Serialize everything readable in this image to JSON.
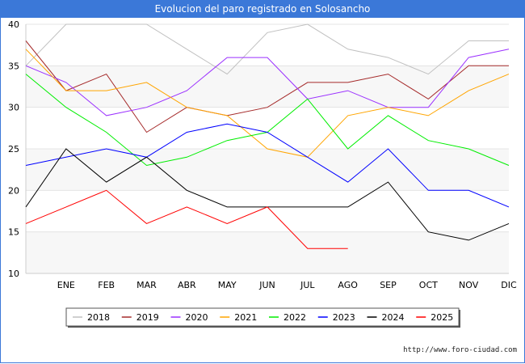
{
  "title": "Evolucion del paro registrado en Solosancho",
  "source_label": "http://www.foro-ciudad.com",
  "chart_data": {
    "type": "line",
    "title": "Evolucion del paro registrado en Solosancho",
    "categories": [
      "",
      "ENE",
      "FEB",
      "MAR",
      "ABR",
      "MAY",
      "JUN",
      "JUL",
      "AGO",
      "SEP",
      "OCT",
      "NOV",
      "DIC"
    ],
    "y_ticks": [
      10,
      15,
      20,
      25,
      30,
      35,
      40
    ],
    "ylim": [
      10,
      40
    ],
    "grid": "horizontal bands",
    "legend_position": "bottom",
    "series": [
      {
        "name": "2018",
        "color": "#c0c0c0",
        "values": [
          35,
          40,
          40,
          40,
          37,
          34,
          39,
          40,
          37,
          36,
          34,
          38,
          38
        ]
      },
      {
        "name": "2019",
        "color": "#a52a2a",
        "values": [
          38,
          32,
          34,
          27,
          30,
          29,
          30,
          33,
          33,
          34,
          31,
          35,
          35
        ]
      },
      {
        "name": "2020",
        "color": "#9b30ff",
        "values": [
          35,
          33,
          29,
          30,
          32,
          36,
          36,
          31,
          32,
          30,
          30,
          36,
          37
        ]
      },
      {
        "name": "2021",
        "color": "#ffa500",
        "values": [
          37,
          32,
          32,
          33,
          30,
          29,
          25,
          24,
          29,
          30,
          29,
          32,
          34
        ]
      },
      {
        "name": "2022",
        "color": "#00ee00",
        "values": [
          34,
          30,
          27,
          23,
          24,
          26,
          27,
          31,
          25,
          29,
          26,
          25,
          23
        ]
      },
      {
        "name": "2023",
        "color": "#0000ff",
        "values": [
          23,
          24,
          25,
          24,
          27,
          28,
          27,
          24,
          21,
          25,
          20,
          20,
          18
        ]
      },
      {
        "name": "2024",
        "color": "#000000",
        "values": [
          18,
          25,
          21,
          24,
          20,
          18,
          18,
          18,
          18,
          21,
          15,
          14,
          16
        ]
      },
      {
        "name": "2025",
        "color": "#ff0000",
        "values": [
          16,
          18,
          20,
          16,
          18,
          16,
          18,
          13,
          13,
          null,
          null,
          null,
          null
        ]
      }
    ]
  }
}
